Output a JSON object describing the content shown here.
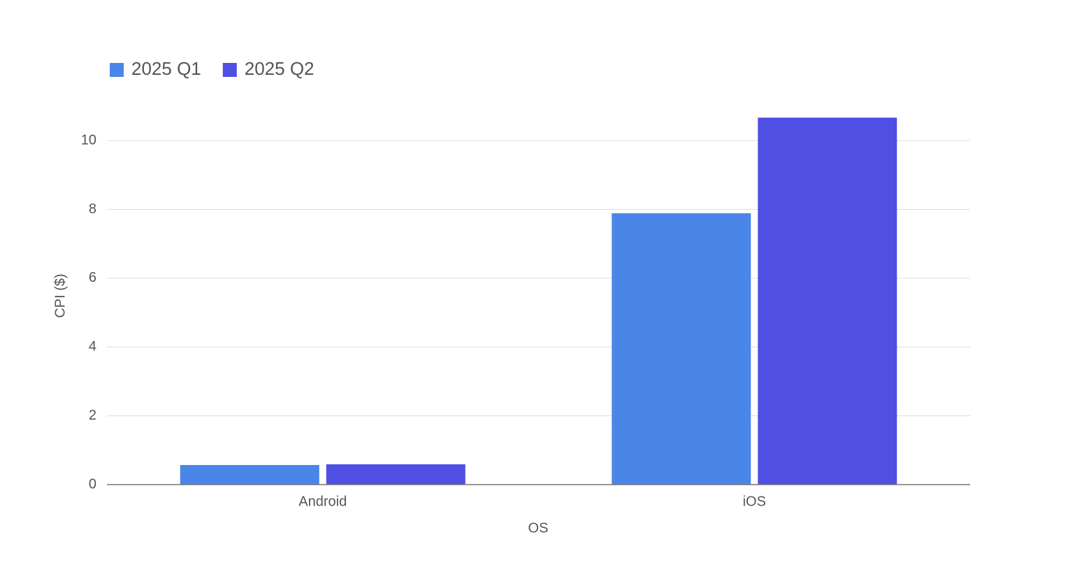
{
  "chart_data": {
    "type": "bar",
    "categories": [
      "Android",
      "iOS"
    ],
    "series": [
      {
        "name": "2025 Q1",
        "color": "#4a86e8",
        "values": [
          0.57,
          7.89
        ]
      },
      {
        "name": "2025 Q2",
        "color": "#4f4fe3",
        "values": [
          0.59,
          10.67
        ]
      }
    ],
    "x_label": "OS",
    "y_label": "CPI ($)",
    "ylim": [
      0,
      11
    ],
    "yticks": [
      0,
      2,
      4,
      6,
      8,
      10
    ],
    "grid": true,
    "legend": "top-left"
  }
}
